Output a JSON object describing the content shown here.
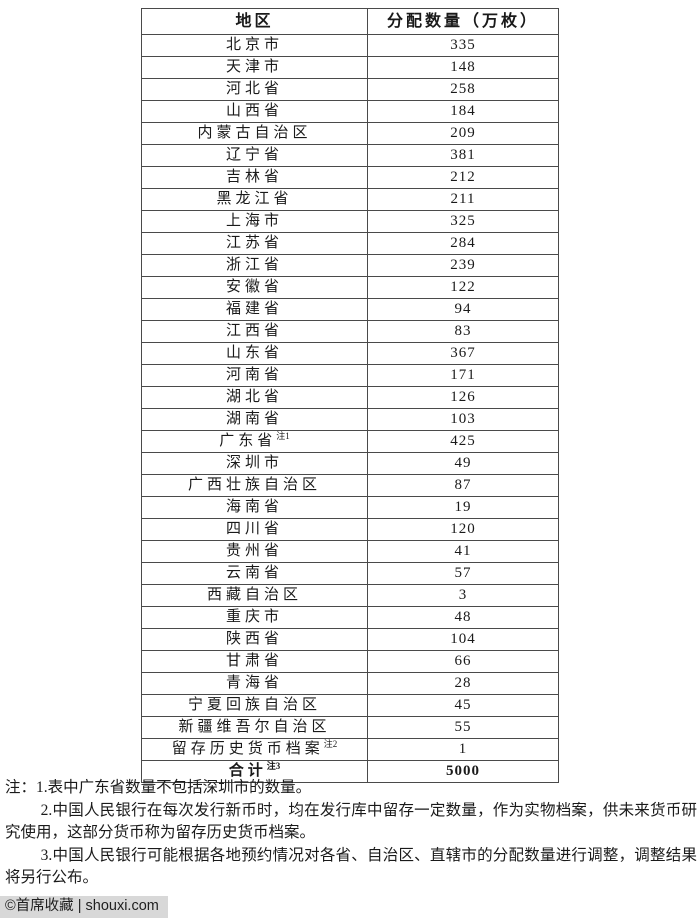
{
  "table": {
    "headers": [
      "地区",
      "分配数量（万枚）"
    ],
    "rows": [
      {
        "region": "北京市",
        "sup": "",
        "amount": "335"
      },
      {
        "region": "天津市",
        "sup": "",
        "amount": "148"
      },
      {
        "region": "河北省",
        "sup": "",
        "amount": "258"
      },
      {
        "region": "山西省",
        "sup": "",
        "amount": "184"
      },
      {
        "region": "内蒙古自治区",
        "sup": "",
        "amount": "209"
      },
      {
        "region": "辽宁省",
        "sup": "",
        "amount": "381"
      },
      {
        "region": "吉林省",
        "sup": "",
        "amount": "212"
      },
      {
        "region": "黑龙江省",
        "sup": "",
        "amount": "211"
      },
      {
        "region": "上海市",
        "sup": "",
        "amount": "325"
      },
      {
        "region": "江苏省",
        "sup": "",
        "amount": "284"
      },
      {
        "region": "浙江省",
        "sup": "",
        "amount": "239"
      },
      {
        "region": "安徽省",
        "sup": "",
        "amount": "122"
      },
      {
        "region": "福建省",
        "sup": "",
        "amount": "94"
      },
      {
        "region": "江西省",
        "sup": "",
        "amount": "83"
      },
      {
        "region": "山东省",
        "sup": "",
        "amount": "367"
      },
      {
        "region": "河南省",
        "sup": "",
        "amount": "171"
      },
      {
        "region": "湖北省",
        "sup": "",
        "amount": "126"
      },
      {
        "region": "湖南省",
        "sup": "",
        "amount": "103"
      },
      {
        "region": "广东省",
        "sup": "注1",
        "amount": "425"
      },
      {
        "region": "深圳市",
        "sup": "",
        "amount": "49"
      },
      {
        "region": "广西壮族自治区",
        "sup": "",
        "amount": "87"
      },
      {
        "region": "海南省",
        "sup": "",
        "amount": "19"
      },
      {
        "region": "四川省",
        "sup": "",
        "amount": "120"
      },
      {
        "region": "贵州省",
        "sup": "",
        "amount": "41"
      },
      {
        "region": "云南省",
        "sup": "",
        "amount": "57"
      },
      {
        "region": "西藏自治区",
        "sup": "",
        "amount": "3"
      },
      {
        "region": "重庆市",
        "sup": "",
        "amount": "48"
      },
      {
        "region": "陕西省",
        "sup": "",
        "amount": "104"
      },
      {
        "region": "甘肃省",
        "sup": "",
        "amount": "66"
      },
      {
        "region": "青海省",
        "sup": "",
        "amount": "28"
      },
      {
        "region": "宁夏回族自治区",
        "sup": "",
        "amount": "45"
      },
      {
        "region": "新疆维吾尔自治区",
        "sup": "",
        "amount": "55"
      },
      {
        "region": "留存历史货币档案",
        "sup": "注2",
        "amount": "1"
      }
    ],
    "total_row": {
      "region": "合计",
      "sup": "注3",
      "amount": "5000"
    }
  },
  "notes": {
    "items": [
      "注：1.表中广东省数量不包括深圳市的数量。",
      "2.中国人民银行在每次发行新币时，均在发行库中留存一定数量，作为实物档案，供未来货币研究使用，这部分货币称为留存历史货币档案。",
      "3.中国人民银行可能根据各地预约情况对各省、自治区、直辖市的分配数量进行调整，调整结果将另行公布。"
    ]
  },
  "watermark": {
    "label": "©首席收藏 | shouxi.com"
  },
  "colors": {
    "border": "#4a4a4a",
    "text": "#1a1a1a",
    "watermark_bg": "#d8d8d8"
  }
}
